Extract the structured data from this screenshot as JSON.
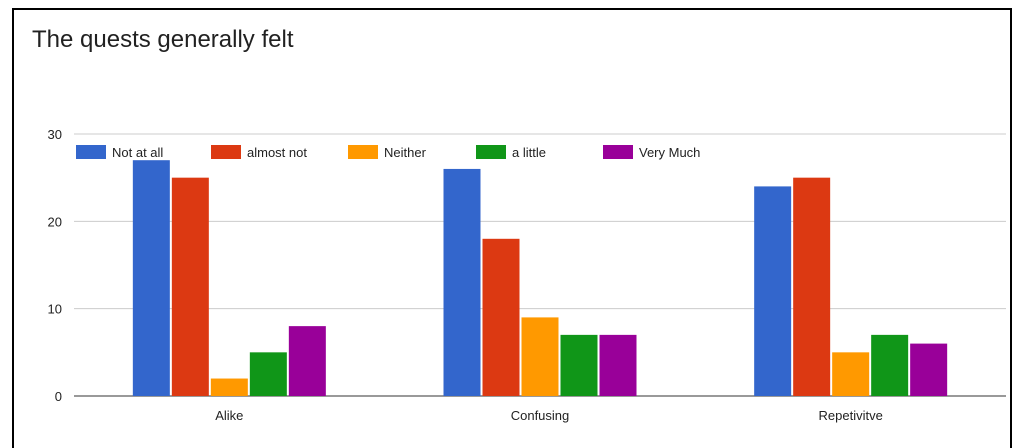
{
  "chart_data": {
    "type": "bar",
    "title": "The quests generally felt",
    "categories": [
      "Alike",
      "Confusing",
      "Repetivitve"
    ],
    "series": [
      {
        "name": "Not at all",
        "color": "#3366CC",
        "values": [
          27,
          26,
          24
        ]
      },
      {
        "name": "almost not",
        "color": "#DC3912",
        "values": [
          25,
          18,
          25
        ]
      },
      {
        "name": "Neither",
        "color": "#FF9900",
        "values": [
          2,
          9,
          5
        ]
      },
      {
        "name": "a little",
        "color": "#109618",
        "values": [
          5,
          7,
          7
        ]
      },
      {
        "name": "Very Much",
        "color": "#990099",
        "values": [
          8,
          7,
          6
        ]
      }
    ],
    "y_ticks": [
      0,
      10,
      20,
      30
    ],
    "ylim": [
      0,
      30
    ],
    "grid": true,
    "legend_position": "top-left"
  }
}
